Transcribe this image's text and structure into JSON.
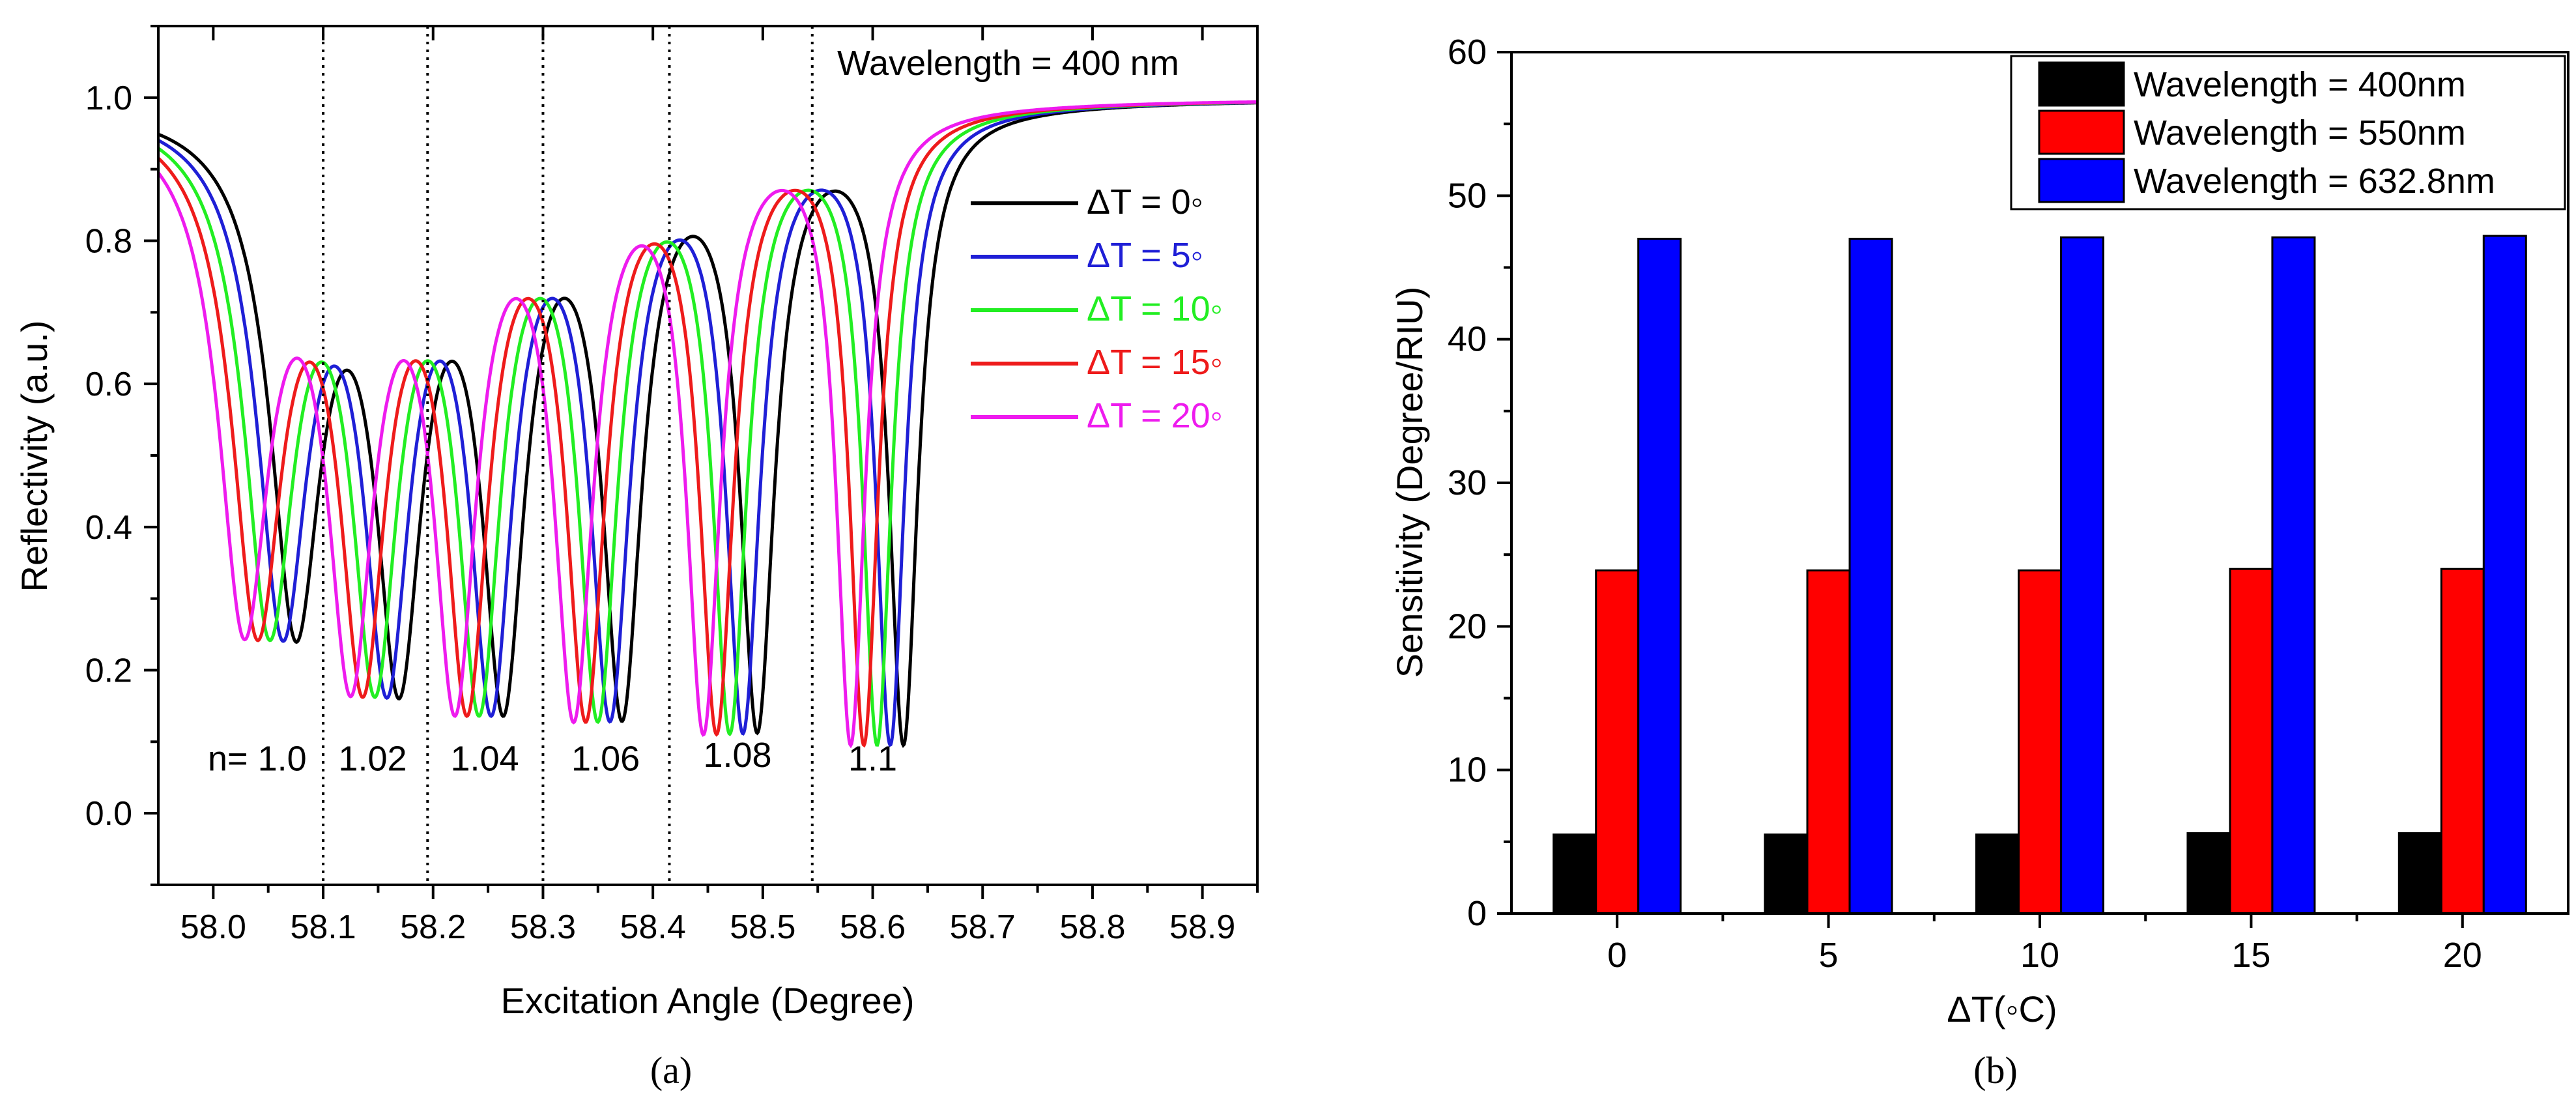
{
  "chart_data": [
    {
      "panel": "a",
      "type": "line",
      "caption": "(a)",
      "annotation": "Wavelength = 400 nm",
      "xlabel": "Excitation Angle (Degree)",
      "ylabel": "Reflectivity (a.u.)",
      "xlim": [
        57.95,
        58.95
      ],
      "ylim": [
        -0.1,
        1.1
      ],
      "xticks": [
        58.0,
        58.1,
        58.2,
        58.3,
        58.4,
        58.5,
        58.6,
        58.7,
        58.8,
        58.9
      ],
      "xtick_labels": [
        "58.0",
        "58.1",
        "58.2",
        "58.3",
        "58.4",
        "58.5",
        "58.6",
        "58.7",
        "58.8",
        "58.9"
      ],
      "yticks": [
        0.0,
        0.2,
        0.4,
        0.6,
        0.8,
        1.0
      ],
      "ytick_labels": [
        "0.0",
        "0.2",
        "0.4",
        "0.6",
        "0.8",
        "1.0"
      ],
      "separators": [
        58.1,
        58.195,
        58.3,
        58.415,
        58.545
      ],
      "region_labels": [
        {
          "text": "n= 1.0",
          "x": 58.04,
          "y": 0.06
        },
        {
          "text": "1.02",
          "x": 58.145,
          "y": 0.06
        },
        {
          "text": "1.04",
          "x": 58.247,
          "y": 0.06
        },
        {
          "text": "1.06",
          "x": 58.357,
          "y": 0.06
        },
        {
          "text": "1.08",
          "x": 58.477,
          "y": 0.065
        },
        {
          "text": "1.1",
          "x": 58.6,
          "y": 0.06
        }
      ],
      "dip_depth": [
        0.31,
        0.275,
        0.24,
        0.205,
        0.165,
        0.125
      ],
      "dip_width": [
        0.028,
        0.026,
        0.024,
        0.022,
        0.019,
        0.016
      ],
      "series": [
        {
          "name": "ΔT = 0◦",
          "color": "#000000",
          "dip_centers": [
            58.075,
            58.169,
            58.264,
            58.372,
            58.495,
            58.628
          ]
        },
        {
          "name": "ΔT = 5◦",
          "color": "#1f1fd6",
          "dip_centers": [
            58.063,
            58.158,
            58.253,
            58.361,
            58.482,
            58.616
          ]
        },
        {
          "name": "ΔT = 10◦",
          "color": "#22ee22",
          "dip_centers": [
            58.051,
            58.147,
            58.242,
            58.35,
            58.47,
            58.604
          ]
        },
        {
          "name": "ΔT = 15◦",
          "color": "#ee1b1b",
          "dip_centers": [
            58.04,
            58.136,
            58.231,
            58.339,
            58.458,
            58.592
          ]
        },
        {
          "name": "ΔT = 20◦",
          "color": "#ee1bee",
          "dip_centers": [
            58.028,
            58.125,
            58.22,
            58.328,
            58.446,
            58.58
          ]
        }
      ]
    },
    {
      "panel": "b",
      "type": "bar",
      "caption": "(b)",
      "xlabel": "ΔT(◦C)",
      "ylabel": "Sensitivity (Degree/RIU)",
      "ylim": [
        0,
        60
      ],
      "yticks": [
        0,
        10,
        20,
        30,
        40,
        50,
        60
      ],
      "categories": [
        "0",
        "5",
        "10",
        "15",
        "20"
      ],
      "series": [
        {
          "name": "Wavelength = 400nm",
          "color": "#000000",
          "values": [
            5.5,
            5.5,
            5.5,
            5.6,
            5.6
          ]
        },
        {
          "name": "Wavelength = 550nm",
          "color": "#ff0000",
          "values": [
            23.9,
            23.9,
            23.9,
            24.0,
            24.0
          ]
        },
        {
          "name": "Wavelength = 632.8nm",
          "color": "#0000ff",
          "values": [
            47.0,
            47.0,
            47.1,
            47.1,
            47.2
          ]
        }
      ]
    }
  ]
}
